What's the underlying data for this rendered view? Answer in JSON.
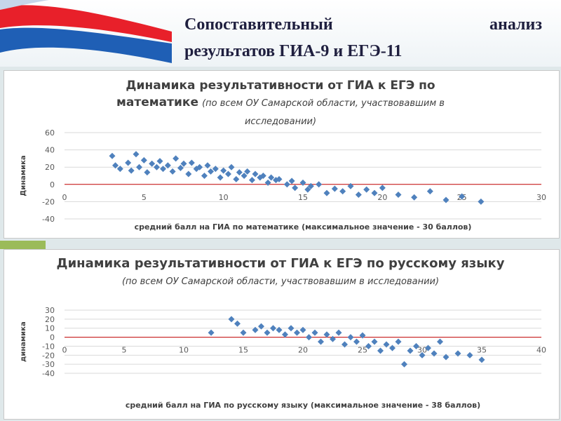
{
  "header": {
    "title_lines": [
      "Сопоставительный анализ",
      "результатов ГИА-9 и ЕГЭ-11"
    ]
  },
  "chart_data": [
    {
      "type": "scatter",
      "title": "Динамика результативности от ГИА к ЕГЭ по математике",
      "subtitle": "(по всем ОУ Самарской области, участвовавшим в исследовании)",
      "xlabel": "средний балл на ГИА по математике (максимальное значение - 30 баллов)",
      "ylabel": "Динамика",
      "color": "#4f81bd",
      "x": [
        3,
        3.2,
        3.5,
        4,
        4.2,
        4.5,
        4.7,
        5,
        5.2,
        5.5,
        5.8,
        6,
        6.2,
        6.5,
        6.8,
        7,
        7.3,
        7.5,
        7.8,
        8,
        8.3,
        8.5,
        8.8,
        9,
        9.2,
        9.5,
        9.8,
        10,
        10.3,
        10.5,
        10.8,
        11,
        11.3,
        11.5,
        11.8,
        12,
        12.3,
        12.5,
        12.8,
        13,
        13.3,
        13.5,
        14,
        14.3,
        14.5,
        15,
        15.3,
        15.5,
        16,
        16.5,
        17,
        17.5,
        18,
        18.5,
        19,
        19.5,
        20,
        21,
        22,
        23,
        24,
        25,
        26.2
      ],
      "values": [
        33,
        22,
        18,
        25,
        16,
        35,
        20,
        28,
        14,
        24,
        20,
        27,
        18,
        22,
        15,
        30,
        19,
        24,
        12,
        25,
        18,
        20,
        10,
        22,
        15,
        18,
        8,
        16,
        12,
        20,
        6,
        14,
        10,
        15,
        5,
        12,
        8,
        10,
        2,
        8,
        5,
        6,
        0,
        4,
        -4,
        2,
        -6,
        -2,
        0,
        -10,
        -5,
        -8,
        -2,
        -12,
        -6,
        -10,
        -4,
        -12,
        -15,
        -8,
        -18,
        -14,
        -20
      ],
      "xlim": [
        0,
        30
      ],
      "xticks": [
        0,
        5,
        10,
        15,
        20,
        25,
        30
      ],
      "ylim": [
        -40,
        60
      ],
      "yticks": [
        60,
        40,
        20,
        0,
        -20,
        -40
      ],
      "grid": true
    },
    {
      "type": "scatter",
      "title": "Динамика результативности от ГИА к ЕГЭ по русскому языку",
      "subtitle": "(по всем ОУ Самарской области, участвовавшим в исследовании)",
      "xlabel": "средний балл на ГИА по русскому языку (максимальное значение - 38 баллов)",
      "ylabel": "динамика",
      "color": "#4f81bd",
      "x": [
        12.3,
        14,
        14.5,
        15,
        16,
        16.5,
        17,
        17.5,
        18,
        18.5,
        19,
        19.5,
        20,
        20.5,
        21,
        21.5,
        22,
        22.5,
        23,
        23.5,
        24,
        24.5,
        25,
        25.5,
        26,
        26.5,
        27,
        27.5,
        28,
        28.5,
        29,
        29.5,
        30,
        30.5,
        31,
        31.5,
        32,
        33,
        34,
        35
      ],
      "values": [
        5,
        20,
        15,
        5,
        8,
        12,
        5,
        10,
        8,
        3,
        10,
        5,
        8,
        0,
        5,
        -5,
        3,
        -2,
        5,
        -8,
        0,
        -5,
        2,
        -10,
        -5,
        -15,
        -8,
        -12,
        -5,
        -30,
        -15,
        -10,
        -20,
        -12,
        -18,
        -5,
        -22,
        -18,
        -20,
        -25
      ],
      "xlim": [
        0,
        40
      ],
      "xticks": [
        0,
        5,
        10,
        15,
        20,
        25,
        30,
        35,
        40
      ],
      "ylim": [
        -40,
        30
      ],
      "yticks": [
        30,
        20,
        10,
        0,
        -10,
        -20,
        -30,
        -40
      ],
      "grid": true
    }
  ]
}
